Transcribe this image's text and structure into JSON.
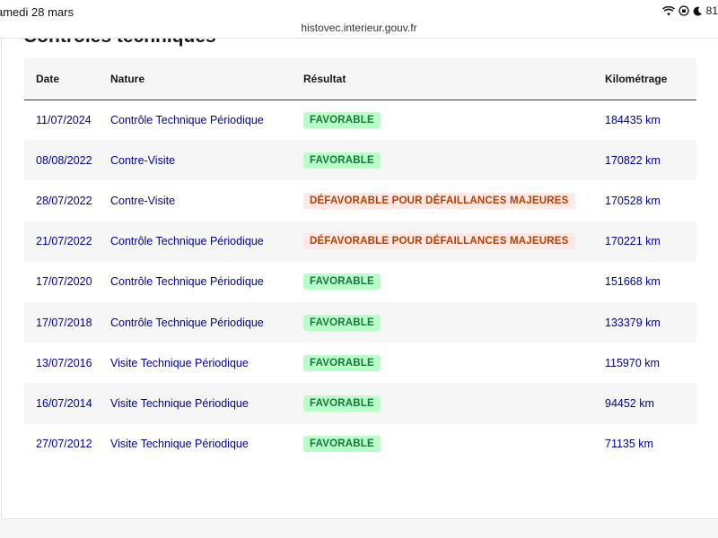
{
  "status_bar": {
    "time": "amedi 28 mars",
    "battery": "81"
  },
  "browser": {
    "url": "histovec.interieur.gouv.fr"
  },
  "section": {
    "title": "Contrôles techniques"
  },
  "table": {
    "headers": {
      "date": "Date",
      "nature": "Nature",
      "result": "Résultat",
      "km": "Kilométrage"
    },
    "rows": [
      {
        "date": "11/07/2024",
        "nature": "Contrôle Technique Périodique",
        "result": "FAVORABLE",
        "status": "ok",
        "km": "184435 km"
      },
      {
        "date": "08/08/2022",
        "nature": "Contre-Visite",
        "result": "FAVORABLE",
        "status": "ok",
        "km": "170822 km"
      },
      {
        "date": "28/07/2022",
        "nature": "Contre-Visite",
        "result": "DÉFAVORABLE POUR DÉFAILLANCES MAJEURES",
        "status": "ko",
        "km": "170528 km"
      },
      {
        "date": "21/07/2022",
        "nature": "Contrôle Technique Périodique",
        "result": "DÉFAVORABLE POUR DÉFAILLANCES MAJEURES",
        "status": "ko",
        "km": "170221 km"
      },
      {
        "date": "17/07/2020",
        "nature": "Contrôle Technique Périodique",
        "result": "FAVORABLE",
        "status": "ok",
        "km": "151668 km"
      },
      {
        "date": "17/07/2018",
        "nature": "Contrôle Technique Périodique",
        "result": "FAVORABLE",
        "status": "ok",
        "km": "133379 km"
      },
      {
        "date": "13/07/2016",
        "nature": "Visite Technique Périodique",
        "result": "FAVORABLE",
        "status": "ok",
        "km": "115970 km"
      },
      {
        "date": "16/07/2014",
        "nature": "Visite Technique Périodique",
        "result": "FAVORABLE",
        "status": "ok",
        "km": "94452 km"
      },
      {
        "date": "27/07/2012",
        "nature": "Visite Technique Périodique",
        "result": "FAVORABLE",
        "status": "ok",
        "km": "71135 km"
      }
    ]
  },
  "colors": {
    "link": "#000091",
    "favorable_bg": "#b8fec9",
    "favorable_text": "#18753c",
    "defavorable_bg": "#ffe9e6",
    "defavorable_text": "#b34000"
  },
  "icons": [
    "wifi-icon",
    "orientation-lock-icon",
    "moon-icon"
  ]
}
